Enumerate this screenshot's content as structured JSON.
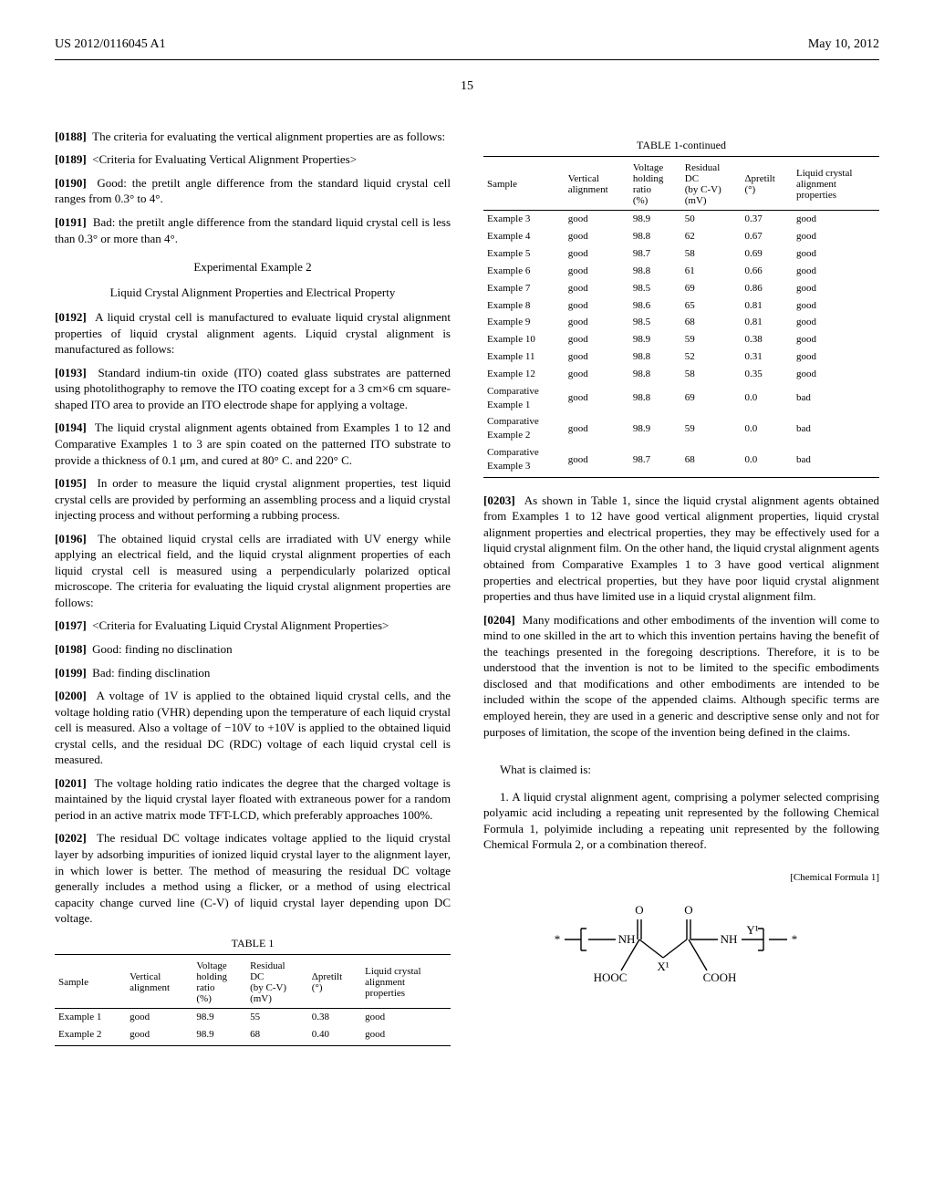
{
  "header": {
    "left": "US 2012/0116045 A1",
    "right": "May 10, 2012"
  },
  "page_number": "15",
  "left_col": {
    "p0188": "The criteria for evaluating the vertical alignment properties are as follows:",
    "p0189": "<Criteria for Evaluating Vertical Alignment Properties>",
    "p0190": "Good: the pretilt angle difference from the standard liquid crystal cell ranges from 0.3° to 4°.",
    "p0191": "Bad: the pretilt angle difference from the standard liquid crystal cell is less than 0.3° or more than 4°.",
    "exp_title": "Experimental Example 2",
    "exp_sub": "Liquid Crystal Alignment Properties and Electrical Property",
    "p0192": "A liquid crystal cell is manufactured to evaluate liquid crystal alignment properties of liquid crystal alignment agents. Liquid crystal alignment is manufactured as follows:",
    "p0193": "Standard indium-tin oxide (ITO) coated glass substrates are patterned using photolithography to remove the ITO coating except for a 3 cm×6 cm square-shaped ITO area to provide an ITO electrode shape for applying a voltage.",
    "p0194": "The liquid crystal alignment agents obtained from Examples 1 to 12 and Comparative Examples 1 to 3 are spin coated on the patterned ITO substrate to provide a thickness of 0.1 μm, and cured at 80° C. and 220° C.",
    "p0195": "In order to measure the liquid crystal alignment properties, test liquid crystal cells are provided by performing an assembling process and a liquid crystal injecting process and without performing a rubbing process.",
    "p0196": "The obtained liquid crystal cells are irradiated with UV energy while applying an electrical field, and the liquid crystal alignment properties of each liquid crystal cell is measured using a perpendicularly polarized optical microscope. The criteria for evaluating the liquid crystal alignment properties are follows:",
    "p0197": "<Criteria for Evaluating Liquid Crystal Alignment Properties>",
    "p0198": "Good: finding no disclination",
    "p0199": "Bad: finding disclination",
    "p0200": "A voltage of 1V is applied to the obtained liquid crystal cells, and the voltage holding ratio (VHR) depending upon the temperature of each liquid crystal cell is measured. Also a voltage of −10V to +10V is applied to the obtained liquid crystal cells, and the residual DC (RDC) voltage of each liquid crystal cell is measured.",
    "p0201": "The voltage holding ratio indicates the degree that the charged voltage is maintained by the liquid crystal layer floated with extraneous power for a random period in an active matrix mode TFT-LCD, which preferably approaches 100%.",
    "p0202": "The residual DC voltage indicates voltage applied to the liquid crystal layer by adsorbing impurities of ionized liquid crystal layer to the alignment layer, in which lower is better. The method of measuring the residual DC voltage generally includes a method using a flicker, or a method of using electrical capacity change curved line (C-V) of liquid crystal layer depending upon DC voltage.",
    "table1_caption": "TABLE 1",
    "table_headers": {
      "sample": "Sample",
      "vert": "Vertical\nalignment",
      "vhr": "Voltage\nholding\nratio\n(%)",
      "rdc": "Residual\nDC\n(by C-V)\n(mV)",
      "pretilt": "Δpretilt\n(°)",
      "lcap": "Liquid crystal\nalignment\nproperties"
    },
    "table1_rows": [
      [
        "Example 1",
        "good",
        "98.9",
        "55",
        "0.38",
        "good"
      ],
      [
        "Example 2",
        "good",
        "98.9",
        "68",
        "0.40",
        "good"
      ]
    ]
  },
  "right_col": {
    "table1c_caption": "TABLE 1-continued",
    "table1c_rows": [
      [
        "Example 3",
        "good",
        "98.9",
        "50",
        "0.37",
        "good"
      ],
      [
        "Example 4",
        "good",
        "98.8",
        "62",
        "0.67",
        "good"
      ],
      [
        "Example 5",
        "good",
        "98.7",
        "58",
        "0.69",
        "good"
      ],
      [
        "Example 6",
        "good",
        "98.8",
        "61",
        "0.66",
        "good"
      ],
      [
        "Example 7",
        "good",
        "98.5",
        "69",
        "0.86",
        "good"
      ],
      [
        "Example 8",
        "good",
        "98.6",
        "65",
        "0.81",
        "good"
      ],
      [
        "Example 9",
        "good",
        "98.5",
        "68",
        "0.81",
        "good"
      ],
      [
        "Example 10",
        "good",
        "98.9",
        "59",
        "0.38",
        "good"
      ],
      [
        "Example 11",
        "good",
        "98.8",
        "52",
        "0.31",
        "good"
      ],
      [
        "Example 12",
        "good",
        "98.8",
        "58",
        "0.35",
        "good"
      ],
      [
        "Comparative\nExample 1",
        "good",
        "98.8",
        "69",
        "0.0",
        "bad"
      ],
      [
        "Comparative\nExample 2",
        "good",
        "98.9",
        "59",
        "0.0",
        "bad"
      ],
      [
        "Comparative\nExample 3",
        "good",
        "98.7",
        "68",
        "0.0",
        "bad"
      ]
    ],
    "p0203": "As shown in Table 1, since the liquid crystal alignment agents obtained from Examples 1 to 12 have good vertical alignment properties, liquid crystal alignment properties and electrical properties, they may be effectively used for a liquid crystal alignment film. On the other hand, the liquid crystal alignment agents obtained from Comparative Examples 1 to 3 have good vertical alignment properties and electrical properties, but they have poor liquid crystal alignment properties and thus have limited use in a liquid crystal alignment film.",
    "p0204": "Many modifications and other embodiments of the invention will come to mind to one skilled in the art to which this invention pertains having the benefit of the teachings presented in the foregoing descriptions. Therefore, it is to be understood that the invention is not to be limited to the specific embodiments disclosed and that modifications and other embodiments are intended to be included within the scope of the appended claims. Although specific terms are employed herein, they are used in a generic and descriptive sense only and not for purposes of limitation, the scope of the invention being defined in the claims.",
    "claims_hdr": "What is claimed is:",
    "claim1": "1. A liquid crystal alignment agent, comprising a polymer selected comprising polyamic acid including a repeating unit represented by the following Chemical Formula 1, polyimide including a repeating unit represented by the following Chemical Formula 2, or a combination thereof.",
    "chem_label": "[Chemical Formula 1]",
    "chem_atoms": {
      "O1": "O",
      "O2": "O",
      "NH1": "NH",
      "NH2": "NH",
      "Y1": "Y¹",
      "X1": "X¹",
      "HOOC1": "HOOC",
      "COOH1": "COOH",
      "star": "*"
    }
  },
  "paragraph_labels": {
    "p0188": "[0188]",
    "p0189": "[0189]",
    "p0190": "[0190]",
    "p0191": "[0191]",
    "p0192": "[0192]",
    "p0193": "[0193]",
    "p0194": "[0194]",
    "p0195": "[0195]",
    "p0196": "[0196]",
    "p0197": "[0197]",
    "p0198": "[0198]",
    "p0199": "[0199]",
    "p0200": "[0200]",
    "p0201": "[0201]",
    "p0202": "[0202]",
    "p0203": "[0203]",
    "p0204": "[0204]"
  },
  "colors": {
    "text": "#000000",
    "bg": "#ffffff",
    "rule": "#000000"
  }
}
